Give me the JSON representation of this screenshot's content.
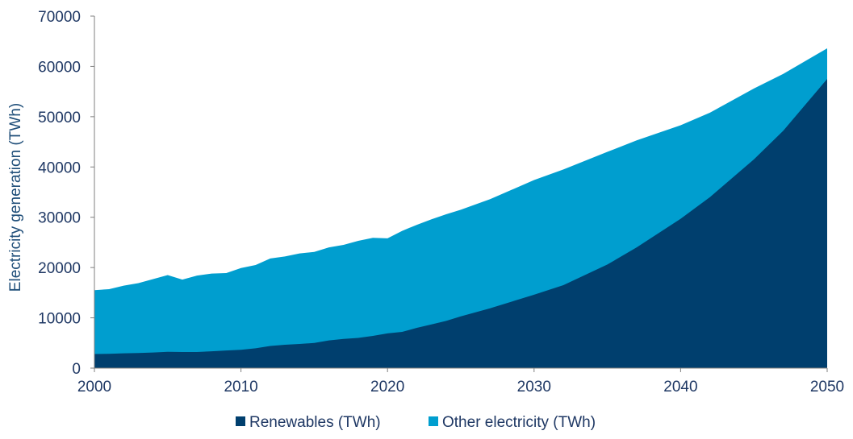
{
  "chart_data": {
    "type": "area",
    "stacked": true,
    "title": "",
    "xlabel": "",
    "ylabel": "Electricity generation (TWh)",
    "xlim": [
      2000,
      2050
    ],
    "ylim": [
      0,
      70000
    ],
    "x_ticks": [
      "2000",
      "2010",
      "2020",
      "2030",
      "2040",
      "2050"
    ],
    "y_ticks": [
      "0",
      "10000",
      "20000",
      "30000",
      "40000",
      "50000",
      "60000",
      "70000"
    ],
    "legend_position": "bottom",
    "series": [
      {
        "name": "Renewables (TWh)",
        "color": "#003f6e",
        "points": [
          [
            2000,
            2800
          ],
          [
            2001,
            2850
          ],
          [
            2002,
            2950
          ],
          [
            2003,
            3000
          ],
          [
            2004,
            3100
          ],
          [
            2005,
            3250
          ],
          [
            2006,
            3200
          ],
          [
            2007,
            3200
          ],
          [
            2008,
            3350
          ],
          [
            2009,
            3500
          ],
          [
            2010,
            3650
          ],
          [
            2011,
            3950
          ],
          [
            2012,
            4400
          ],
          [
            2013,
            4650
          ],
          [
            2014,
            4800
          ],
          [
            2015,
            5000
          ],
          [
            2016,
            5500
          ],
          [
            2017,
            5800
          ],
          [
            2018,
            6000
          ],
          [
            2019,
            6400
          ],
          [
            2020,
            6900
          ],
          [
            2021,
            7200
          ],
          [
            2022,
            8000
          ],
          [
            2023,
            8700
          ],
          [
            2024,
            9400
          ],
          [
            2025,
            10300
          ],
          [
            2027,
            11900
          ],
          [
            2030,
            14600
          ],
          [
            2032,
            16500
          ],
          [
            2035,
            20600
          ],
          [
            2037,
            24000
          ],
          [
            2040,
            29700
          ],
          [
            2042,
            34000
          ],
          [
            2045,
            41500
          ],
          [
            2047,
            47200
          ],
          [
            2050,
            57500
          ]
        ]
      },
      {
        "name": "Other electricity (TWh)",
        "color": "#009ecf",
        "total_points": [
          [
            2000,
            15500
          ],
          [
            2001,
            15700
          ],
          [
            2002,
            16400
          ],
          [
            2003,
            16900
          ],
          [
            2004,
            17700
          ],
          [
            2005,
            18500
          ],
          [
            2006,
            17600
          ],
          [
            2007,
            18400
          ],
          [
            2008,
            18800
          ],
          [
            2009,
            18900
          ],
          [
            2010,
            19900
          ],
          [
            2011,
            20500
          ],
          [
            2012,
            21800
          ],
          [
            2013,
            22200
          ],
          [
            2014,
            22800
          ],
          [
            2015,
            23100
          ],
          [
            2016,
            24000
          ],
          [
            2017,
            24500
          ],
          [
            2018,
            25300
          ],
          [
            2019,
            25900
          ],
          [
            2020,
            25800
          ],
          [
            2021,
            27300
          ],
          [
            2022,
            28500
          ],
          [
            2023,
            29600
          ],
          [
            2024,
            30600
          ],
          [
            2025,
            31500
          ],
          [
            2027,
            33600
          ],
          [
            2030,
            37400
          ],
          [
            2032,
            39500
          ],
          [
            2035,
            43000
          ],
          [
            2037,
            45300
          ],
          [
            2040,
            48300
          ],
          [
            2042,
            50800
          ],
          [
            2045,
            55600
          ],
          [
            2047,
            58500
          ],
          [
            2050,
            63600
          ]
        ]
      }
    ]
  }
}
